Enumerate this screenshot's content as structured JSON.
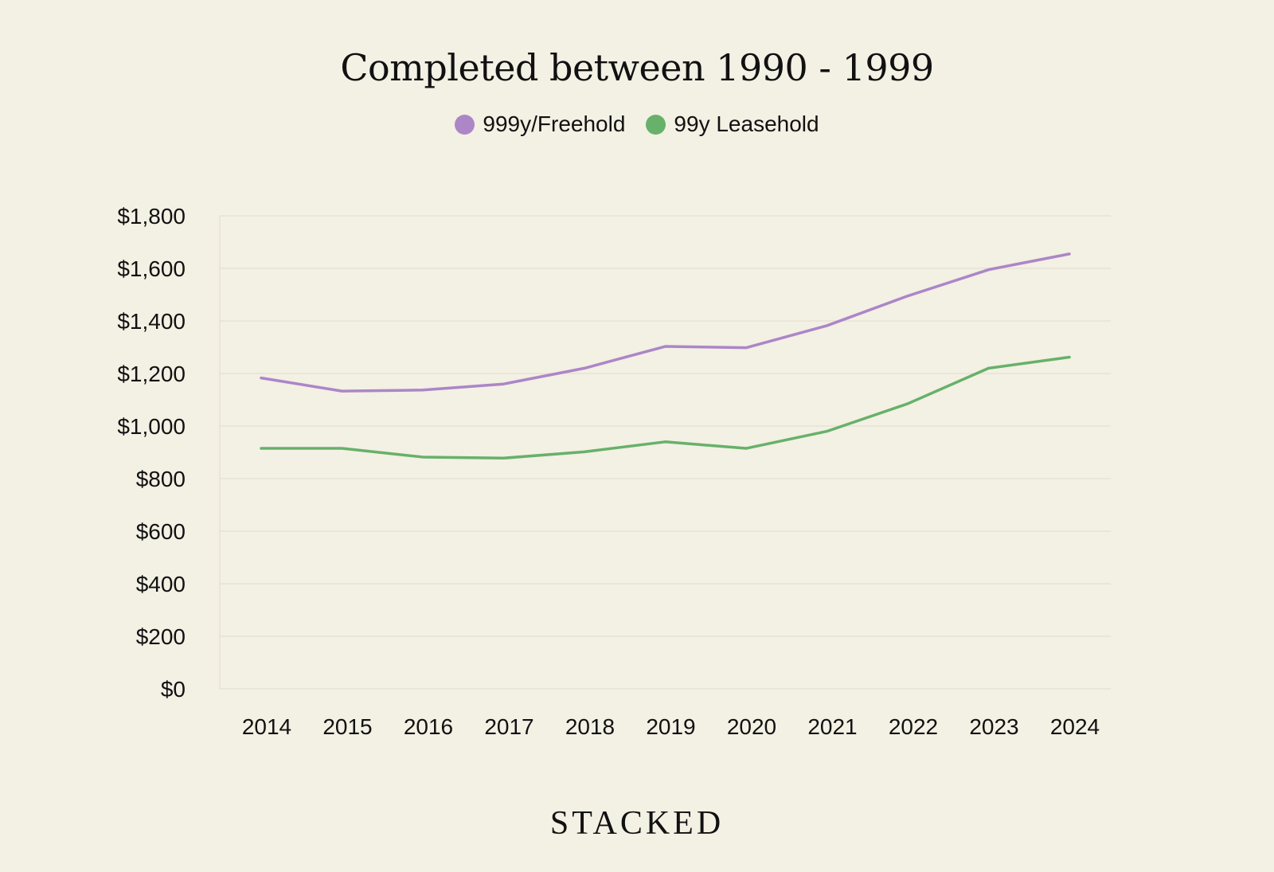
{
  "chart_data": {
    "type": "line",
    "title": "Completed between 1990 - 1999",
    "xlabel": "",
    "ylabel": "",
    "categories": [
      "2014",
      "2015",
      "2016",
      "2017",
      "2018",
      "2019",
      "2020",
      "2021",
      "2022",
      "2023",
      "2024"
    ],
    "y_ticks": [
      "$0",
      "$200",
      "$400",
      "$600",
      "$800",
      "$1,000",
      "$1,200",
      "$1,400",
      "$1,600",
      "$1,800"
    ],
    "ylim": [
      0,
      1800
    ],
    "grid": true,
    "legend_position": "top-center",
    "series": [
      {
        "name": "999y/Freehold",
        "color": "#ac86c7",
        "values": [
          1183,
          1133,
          1137,
          1160,
          1220,
          1303,
          1298,
          1382,
          1495,
          1595,
          1655
        ]
      },
      {
        "name": "99y Leasehold",
        "color": "#67b16a",
        "values": [
          915,
          915,
          882,
          878,
          902,
          940,
          915,
          980,
          1085,
          1220,
          1262
        ]
      }
    ]
  },
  "brand": "STACKED",
  "colors": {
    "background": "#f3f0e4",
    "grid": "#e4e0d2",
    "text": "#111111"
  }
}
